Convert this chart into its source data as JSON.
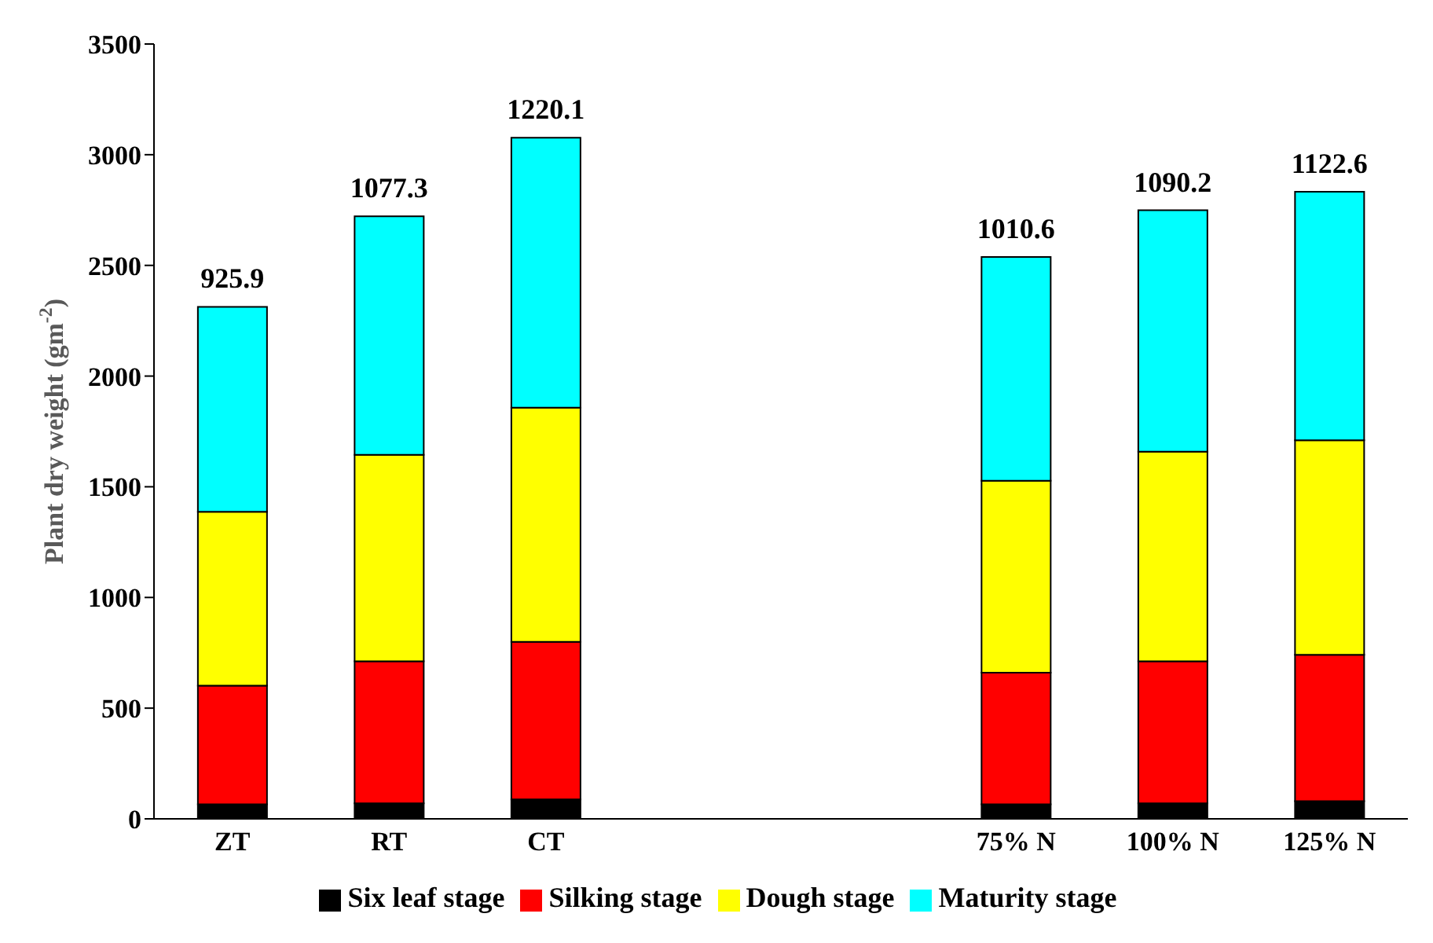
{
  "chart_data": {
    "type": "bar",
    "stacked": true,
    "ylabel": "Plant dry weight (gm$^{-2}$)",
    "categories": [
      "ZT",
      "RT",
      "CT",
      null,
      null,
      "75% N",
      "100% N",
      "125% N"
    ],
    "series": [
      {
        "name": "Six leaf stage",
        "color": "#000000",
        "values": [
          66,
          70,
          88,
          null,
          null,
          66,
          70,
          80
        ]
      },
      {
        "name": "Silking stage",
        "color": "#ff0000",
        "values": [
          536,
          642,
          712,
          null,
          null,
          594,
          642,
          661
        ]
      },
      {
        "name": "Dough stage",
        "color": "#ffff00",
        "values": [
          785,
          932,
          1057,
          null,
          null,
          867,
          947,
          969
        ]
      },
      {
        "name": "Maturity stage",
        "color": "#00ffff",
        "values": [
          925.9,
          1077.3,
          1220.1,
          null,
          null,
          1010.6,
          1090.2,
          1122.6
        ],
        "value_labels": [
          "925.9",
          "1077.3",
          "1220.1",
          null,
          null,
          "1010.6",
          "1090.2",
          "1122.6"
        ]
      }
    ],
    "ylim": [
      0,
      3500
    ],
    "yticks": [
      0,
      500,
      1000,
      1500,
      2000,
      2500,
      3000,
      3500
    ],
    "grid": false,
    "legend": "bottom"
  }
}
